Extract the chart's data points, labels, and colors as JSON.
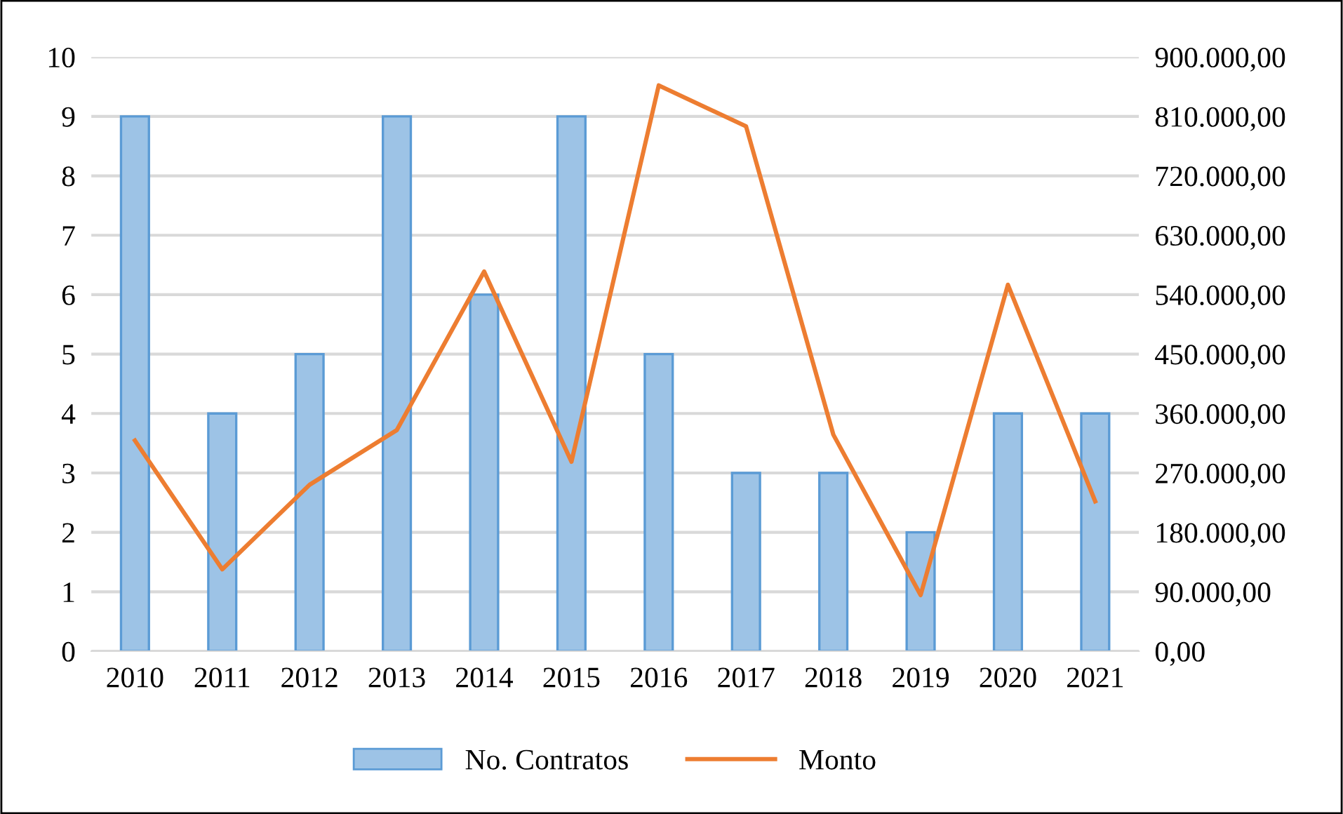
{
  "chart_data": {
    "type": "bar",
    "categories": [
      "2010",
      "2011",
      "2012",
      "2013",
      "2014",
      "2015",
      "2016",
      "2017",
      "2018",
      "2019",
      "2020",
      "2021"
    ],
    "series": [
      {
        "name": "No. Contratos",
        "color": "#9dc3e6",
        "values": [
          9,
          4,
          5,
          9,
          6,
          9,
          5,
          3,
          3,
          2,
          4,
          4
        ]
      },
      {
        "name": "Monto",
        "type": "line",
        "axis": "y2",
        "color": "#ed7d31",
        "values": [
          319000,
          124000,
          252000,
          335000,
          575000,
          287000,
          857000,
          795000,
          328000,
          85000,
          555000,
          227000
        ]
      }
    ],
    "ylim": [
      0,
      10
    ],
    "yticks": [
      0,
      1,
      2,
      3,
      4,
      5,
      6,
      7,
      8,
      9,
      10
    ],
    "y2lim": [
      0,
      900000
    ],
    "y2ticks": [
      {
        "value": 0,
        "label": "0,00"
      },
      {
        "value": 90000,
        "label": "90.000,00"
      },
      {
        "value": 180000,
        "label": "180.000,00"
      },
      {
        "value": 270000,
        "label": "270.000,00"
      },
      {
        "value": 360000,
        "label": "360.000,00"
      },
      {
        "value": 450000,
        "label": "450.000,00"
      },
      {
        "value": 540000,
        "label": "540.000,00"
      },
      {
        "value": 630000,
        "label": "630.000,00"
      },
      {
        "value": 720000,
        "label": "720.000,00"
      },
      {
        "value": 810000,
        "label": "810.000,00"
      },
      {
        "value": 900000,
        "label": "900.000,00"
      }
    ],
    "grid": "y",
    "legend": "bottom"
  }
}
